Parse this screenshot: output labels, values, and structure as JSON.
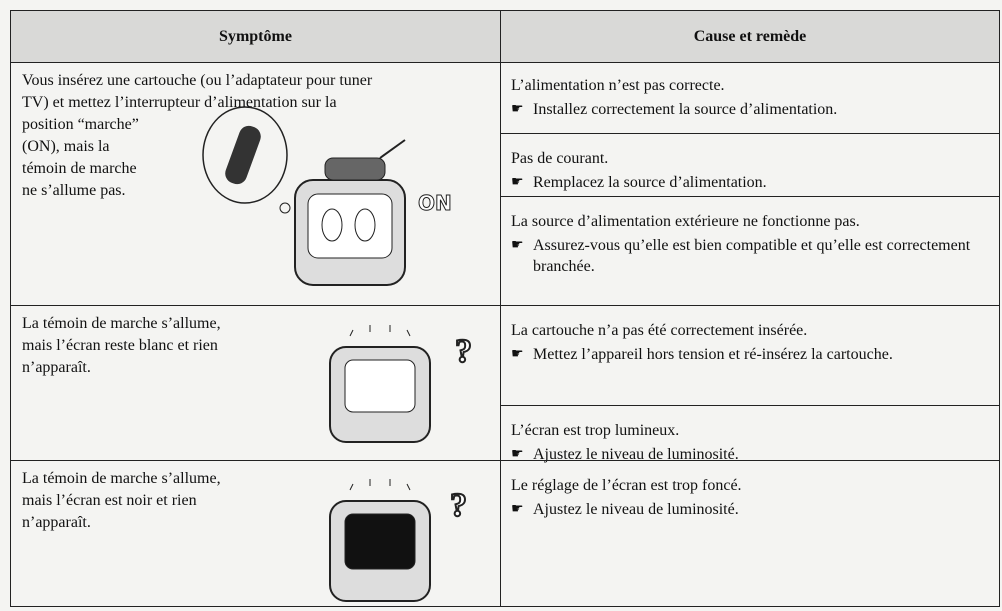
{
  "header": {
    "symptom": "Symptôme",
    "cause": "Cause et remède"
  },
  "rows": [
    {
      "symptom": [
        "Vous insérez une cartouche (ou l’adaptateur pour tuner",
        "TV) et mettez l’interrupteur d’alimentation sur la",
        "position “marche”",
        "(ON), mais la",
        "témoin de marche",
        "ne s’allume pas."
      ],
      "illustration_label": "ON",
      "causes": [
        {
          "cause": "L’alimentation n’est pas correcte.",
          "remedy": "Installez correctement la source d’alimentation."
        },
        {
          "cause": "Pas de courant.",
          "remedy": "Remplacez la source d’alimentation."
        },
        {
          "cause": "La source d’alimentation extérieure ne fonctionne pas.",
          "remedy": "Assurez-vous qu’elle est bien compatible et qu’elle est correctement branchée."
        }
      ]
    },
    {
      "symptom": [
        "La témoin de marche s’allume,",
        "mais l’écran reste blanc et rien",
        "n’apparaît."
      ],
      "causes": [
        {
          "cause": "La cartouche n’a pas été correctement insérée.",
          "remedy": "Mettez l’appareil hors tension et ré-insérez la cartouche."
        },
        {
          "cause": "L’écran est trop lumineux.",
          "remedy": "Ajustez le niveau de luminosité."
        }
      ]
    },
    {
      "symptom": [
        "La témoin de marche s’allume,",
        "mais l’écran est noir et rien",
        "n’apparaît."
      ],
      "causes": [
        {
          "cause": "Le réglage de l’écran est trop foncé.",
          "remedy": "Ajustez le niveau de luminosité."
        }
      ]
    }
  ]
}
